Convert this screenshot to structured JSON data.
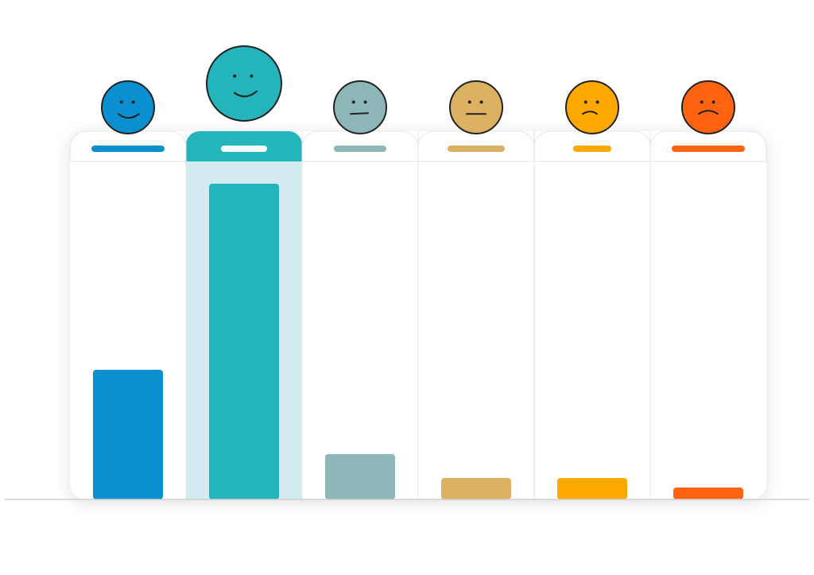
{
  "chart_data": {
    "type": "bar",
    "categories": [
      null,
      null,
      null,
      null,
      null,
      null
    ],
    "values": [
      163,
      397,
      57,
      27,
      27,
      15
    ],
    "colors": [
      "#0a8fd0",
      "#24b4bc",
      "#8db6b8",
      "#dcb262",
      "#ffa800",
      "#ff6310"
    ],
    "ylim": [
      0,
      425
    ],
    "highlight": 1
  }
}
